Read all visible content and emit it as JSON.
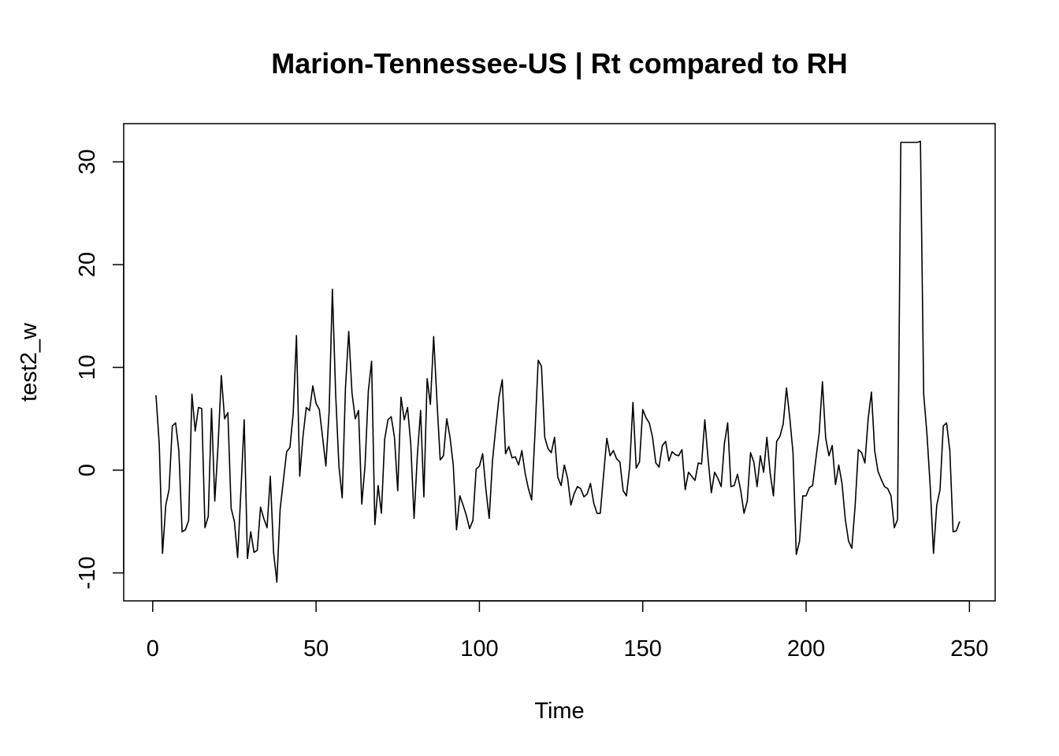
{
  "chart_data": {
    "type": "line",
    "title": "Marion-Tennessee-US | Rt compared to RH",
    "xlabel": "Time",
    "ylabel": "test2_w",
    "xlim": [
      1,
      248
    ],
    "ylim": [
      -11,
      32
    ],
    "x_ticks": [
      0,
      50,
      100,
      150,
      200,
      250
    ],
    "y_ticks": [
      -10,
      0,
      10,
      20,
      30
    ],
    "grid": false,
    "legend": "none",
    "line_color": "#000000",
    "series": [
      {
        "x_start": 1,
        "values": [
          7.3,
          2.5,
          -8.1,
          -3.4,
          -1.9,
          4.3,
          4.6,
          1.9,
          -6.0,
          -5.8,
          -4.9,
          7.4,
          3.8,
          6.1,
          6.0,
          -5.6,
          -4.5,
          6.0,
          -3.0,
          2.4,
          9.2,
          5.0,
          5.6,
          -3.7,
          -5.0,
          -8.5,
          -2.0,
          4.9,
          -8.6,
          -6.0,
          -8.0,
          -7.8,
          -3.6,
          -4.7,
          -5.6,
          -0.6,
          -8.0,
          -10.9,
          -3.8,
          -1.0,
          1.8,
          2.2,
          5.5,
          13.1,
          -0.6,
          3.3,
          6.1,
          5.8,
          8.2,
          6.5,
          5.9,
          3.2,
          0.4,
          5.7,
          17.6,
          7.4,
          0.4,
          -2.7,
          8.0,
          13.5,
          7.5,
          5.0,
          5.8,
          -3.3,
          0.5,
          7.7,
          10.6,
          -5.3,
          -1.5,
          -4.2,
          3.0,
          4.9,
          5.2,
          3.2,
          -2.0,
          7.1,
          4.9,
          6.1,
          2.5,
          -4.7,
          1.4,
          5.8,
          -2.6,
          8.9,
          6.4,
          13.0,
          6.8,
          1.0,
          1.4,
          5.0,
          3.2,
          0.5,
          -5.8,
          -2.5,
          -3.4,
          -4.4,
          -5.7,
          -4.9,
          0.1,
          0.4,
          1.6,
          -1.9,
          -4.7,
          0.9,
          4.1,
          7.1,
          8.8,
          1.6,
          2.3,
          1.2,
          1.3,
          0.5,
          1.9,
          -0.3,
          -1.8,
          -2.9,
          3.5,
          10.7,
          10.1,
          3.2,
          2.1,
          1.7,
          3.2,
          -0.7,
          -1.5,
          0.5,
          -0.8,
          -3.4,
          -2.3,
          -1.6,
          -1.8,
          -2.6,
          -2.3,
          -1.3,
          -3.2,
          -4.2,
          -4.2,
          -0.5,
          3.1,
          1.4,
          1.9,
          1.1,
          0.8,
          -2.0,
          -2.5,
          0.3,
          6.6,
          0.2,
          0.8,
          5.9,
          5.1,
          4.6,
          3.2,
          0.7,
          0.3,
          2.4,
          2.8,
          0.9,
          1.8,
          1.5,
          1.4,
          2.0,
          -1.9,
          -0.2,
          -0.6,
          -1.0,
          0.7,
          0.6,
          4.9,
          1.1,
          -2.2,
          -0.2,
          -0.8,
          -1.6,
          2.6,
          4.6,
          -1.6,
          -1.5,
          -0.4,
          -2.0,
          -4.2,
          -3.0,
          1.7,
          0.8,
          -1.6,
          1.4,
          -0.2,
          3.2,
          -0.3,
          -2.5,
          2.8,
          3.3,
          4.5,
          8.0,
          5.1,
          1.7,
          -8.2,
          -6.9,
          -2.5,
          -2.5,
          -1.7,
          -1.5,
          1.1,
          3.6,
          8.6,
          3.1,
          1.4,
          2.4,
          -1.4,
          0.5,
          -1.3,
          -4.8,
          -6.9,
          -7.6,
          -3.5,
          2.0,
          1.7,
          0.7,
          5.0,
          7.6,
          1.9,
          -0.1,
          -0.9,
          -1.6,
          -1.8,
          -2.5,
          -5.6,
          -4.8,
          31.9,
          31.9,
          31.9,
          31.9,
          31.9,
          31.9,
          32.0,
          7.4,
          3.5,
          -1.6,
          -8.1,
          -3.4,
          -1.9,
          4.3,
          4.6,
          1.9,
          -6.0,
          -5.9,
          -5.0
        ]
      }
    ]
  }
}
